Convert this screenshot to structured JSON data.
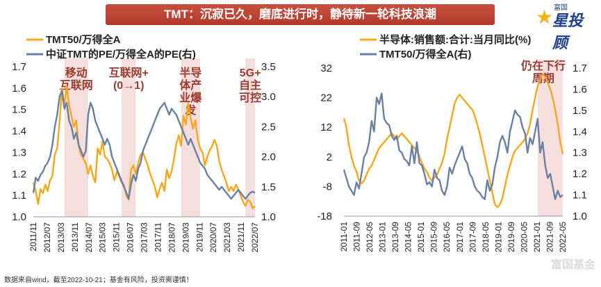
{
  "header": {
    "title": "TMT：沉寂已久，磨底进行时，静待新一轮科技浪潮"
  },
  "logo": {
    "small": "富国",
    "big": "星投顾"
  },
  "footnote": "数据来自wind，截至2022-10-21；基金有风险，投资需谨慎！",
  "watermark": "富国基金",
  "colors": {
    "orange": "#f5a81c",
    "blue": "#6b7fa3",
    "band": "#f5dede",
    "title_bg": "#c0392b",
    "annot": "#9c3b2f"
  },
  "chart_data": [
    {
      "type": "line",
      "legend": [
        "TMT50/万得全A",
        "中证TMT的PE/万得全A的PE(右)"
      ],
      "y_left": {
        "range": [
          1.0,
          1.7
        ],
        "ticks": [
          "1.7",
          "1.6",
          "1.5",
          "1.4",
          "1.3",
          "1.2",
          "1.1",
          "1.0"
        ]
      },
      "y_right": {
        "range": [
          1.0,
          3.5
        ],
        "ticks": [
          "3.5",
          "3.0",
          "2.5",
          "2.0",
          "1.5",
          "1.0"
        ]
      },
      "x_ticks": [
        "2011/11",
        "2012/07",
        "2013/03",
        "2013/11",
        "2014/07",
        "2015/03",
        "2015/11",
        "2016/07",
        "2017/03",
        "2017/11",
        "2018/07",
        "2019/03",
        "2019/11",
        "2020/07",
        "2021/03",
        "2021/11",
        "2022/07"
      ],
      "annotations": [
        {
          "label": "移动\n互联网",
          "period": [
            "2012/12",
            "2013/10"
          ]
        },
        {
          "label": "互联网+\n(0→1)",
          "period": [
            "2014/11",
            "2015/06"
          ]
        },
        {
          "label": "半导\n体产\n业爆\n发",
          "period": [
            "2017/01",
            "2017/12"
          ]
        },
        {
          "label": "5G+\n自主\n可控",
          "period": [
            "2019/06",
            "2020/10"
          ]
        }
      ],
      "series": [
        {
          "name": "TMT50/万得全A",
          "axis": "left",
          "color": "#f5a81c",
          "values": [
            1.16,
            1.12,
            1.06,
            1.13,
            1.11,
            1.15,
            1.12,
            1.17,
            1.19,
            1.29,
            1.32,
            1.44,
            1.6,
            1.52,
            1.61,
            1.52,
            1.47,
            1.42,
            1.45,
            1.33,
            1.29,
            1.27,
            1.25,
            1.2,
            1.24,
            1.19,
            1.16,
            1.32,
            1.29,
            1.35,
            1.28,
            1.27,
            1.25,
            1.22,
            1.17,
            1.21,
            1.19,
            1.16,
            1.15,
            1.1,
            1.08,
            1.22,
            1.24,
            1.2,
            1.25,
            1.29,
            1.3,
            1.27,
            1.24,
            1.2,
            1.17,
            1.14,
            1.09,
            1.13,
            1.16,
            1.12,
            1.22,
            1.18,
            1.21,
            1.27,
            1.34,
            1.38,
            1.33,
            1.47,
            1.43,
            1.53,
            1.46,
            1.41,
            1.45,
            1.36,
            1.32,
            1.3,
            1.24,
            1.28,
            1.31,
            1.33,
            1.36,
            1.33,
            1.26,
            1.22,
            1.19,
            1.16,
            1.12,
            1.14,
            1.12,
            1.15,
            1.13,
            1.1,
            1.07,
            1.05,
            1.08,
            1.07,
            1.04,
            1.05
          ]
        },
        {
          "name": "中证TMT的PE/万得全A的PE(右)",
          "axis": "right",
          "color": "#6b7fa3",
          "values": [
            1.4,
            1.65,
            1.6,
            1.7,
            1.75,
            1.85,
            1.9,
            2.0,
            2.2,
            2.5,
            2.7,
            3.0,
            3.1,
            2.8,
            2.9,
            2.6,
            2.5,
            2.3,
            2.4,
            2.2,
            2.1,
            2.0,
            2.1,
            2.7,
            2.9,
            2.8,
            2.6,
            2.5,
            2.4,
            2.3,
            2.2,
            2.3,
            2.2,
            2.0,
            1.9,
            1.8,
            1.7,
            1.6,
            1.5,
            1.4,
            1.3,
            1.55,
            1.7,
            1.6,
            1.8,
            1.9,
            2.1,
            2.2,
            2.3,
            2.4,
            2.5,
            2.6,
            2.7,
            2.8,
            2.85,
            2.9,
            2.8,
            2.7,
            2.8,
            2.75,
            2.7,
            2.6,
            2.5,
            2.4,
            2.3,
            2.2,
            2.3,
            2.2,
            2.1,
            2.0,
            1.9,
            1.85,
            1.8,
            1.7,
            1.65,
            1.6,
            1.55,
            1.5,
            1.45,
            1.5,
            1.45,
            1.4,
            1.35,
            1.3,
            1.35,
            1.4,
            1.45,
            1.4,
            1.35,
            1.3,
            1.35,
            1.4,
            1.42,
            1.4
          ]
        }
      ]
    },
    {
      "type": "line",
      "legend": [
        "半导体:销售额:合计:当月同比(%)",
        "TMT50/万得全A(右)"
      ],
      "y_left": {
        "range": [
          -18,
          32
        ],
        "ticks": [
          "32",
          "22",
          "12",
          "2",
          "-8",
          "-18"
        ]
      },
      "y_right": {
        "range": [
          1.0,
          1.7
        ],
        "ticks": [
          "1.7",
          "1.6",
          "1.5",
          "1.4",
          "1.3",
          "1.2",
          "1.1",
          "1.0"
        ]
      },
      "x_ticks": [
        "2011-01",
        "2011-09",
        "2012-05",
        "2013-01",
        "2013-09",
        "2014-05",
        "2015-01",
        "2015-09",
        "2016-05",
        "2017-01",
        "2017-09",
        "2018-05",
        "2019-01",
        "2019-09",
        "2020-05",
        "2021-01",
        "2021-09",
        "2022-05"
      ],
      "annotations": [
        {
          "label": "仍在下行\n周期",
          "period": [
            "2021-07",
            "2022-09"
          ]
        }
      ],
      "series": [
        {
          "name": "半导体:销售额:合计:当月同比(%)",
          "axis": "left",
          "color": "#f5a81c",
          "values": [
            15,
            12,
            6,
            2,
            -1,
            -3,
            -6,
            -7,
            -6,
            -4,
            -2,
            -1,
            1,
            3,
            5,
            6,
            7,
            8,
            9,
            10,
            9,
            8,
            9,
            10,
            9,
            8,
            7,
            6,
            5,
            4,
            2,
            0,
            -2,
            -3,
            -5,
            -6,
            -5,
            -4,
            -2,
            0,
            3,
            8,
            12,
            16,
            20,
            22,
            23,
            22,
            21,
            20,
            19,
            18,
            16,
            13,
            10,
            6,
            2,
            -2,
            -6,
            -10,
            -14,
            -15,
            -14,
            -12,
            -8,
            -4,
            -1,
            2,
            4,
            5,
            6,
            7,
            8,
            10,
            13,
            18,
            22,
            26,
            28,
            30,
            29,
            27,
            25,
            22,
            18,
            13,
            7,
            3
          ]
        },
        {
          "name": "TMT50/万得全A(右)",
          "axis": "right",
          "color": "#6b7fa3",
          "values": [
            1.22,
            1.18,
            1.14,
            1.12,
            1.1,
            1.16,
            1.13,
            1.2,
            1.28,
            1.3,
            1.35,
            1.45,
            1.4,
            1.56,
            1.53,
            1.58,
            1.46,
            1.44,
            1.43,
            1.38,
            1.36,
            1.38,
            1.31,
            1.3,
            1.27,
            1.26,
            1.24,
            1.33,
            1.25,
            1.35,
            1.25,
            1.24,
            1.2,
            1.15,
            1.16,
            1.14,
            1.22,
            1.18,
            1.17,
            1.12,
            1.1,
            1.14,
            1.23,
            1.2,
            1.24,
            1.27,
            1.3,
            1.33,
            1.27,
            1.25,
            1.2,
            1.18,
            1.14,
            1.12,
            1.11,
            1.09,
            1.08,
            1.17,
            1.12,
            1.15,
            1.23,
            1.28,
            1.35,
            1.38,
            1.35,
            1.3,
            1.4,
            1.45,
            1.5,
            1.48,
            1.47,
            1.42,
            1.39,
            1.3,
            1.37,
            1.34,
            1.4,
            1.46,
            1.3,
            1.35,
            1.24,
            1.18,
            1.2,
            1.14,
            1.08,
            1.12,
            1.09,
            1.1
          ]
        }
      ]
    }
  ]
}
